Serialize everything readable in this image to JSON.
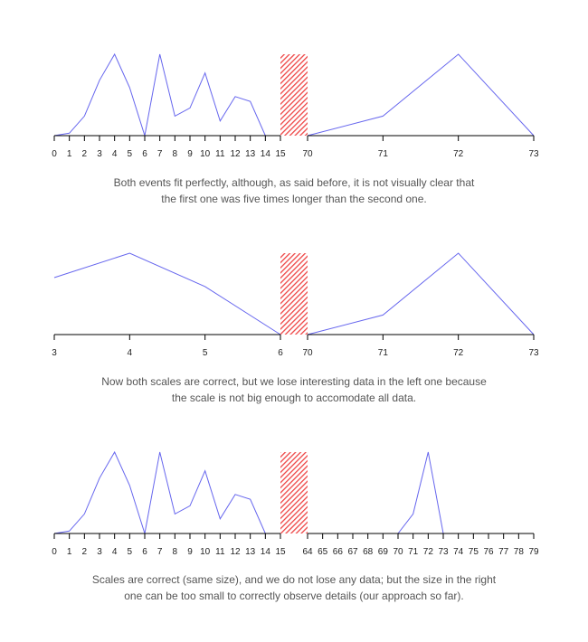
{
  "colors": {
    "line": "#6666ee",
    "hatch": "#ee4444",
    "axis": "#000000"
  },
  "captions": [
    [
      "Both events fit perfectly, although, as said before, it is not visually clear that",
      "the first one was five times longer than the second one."
    ],
    [
      "Now both scales are correct, but we lose interesting data in the left one because",
      "the scale is not big enough to accomodate all data."
    ],
    [
      "Scales are correct (same size), and we do not lose any data; but the size in the right",
      "one can be too small to correctly observe details (our approach so far)."
    ]
  ],
  "chart_data": [
    {
      "type": "line",
      "left": {
        "x": [
          0,
          1,
          2,
          3,
          4,
          5,
          6,
          7,
          8,
          9,
          10,
          11,
          12,
          13,
          14,
          15
        ],
        "y": [
          0,
          0.03,
          0.24,
          0.68,
          1.0,
          0.59,
          0,
          1.0,
          0.24,
          0.34,
          0.77,
          0.18,
          0.48,
          0.42,
          0,
          0
        ],
        "ticks": [
          "0",
          "1",
          "2",
          "3",
          "4",
          "5",
          "6",
          "7",
          "8",
          "9",
          "10",
          "11",
          "12",
          "13",
          "14",
          "15"
        ]
      },
      "right": {
        "x": [
          70,
          71,
          72,
          73
        ],
        "y": [
          0,
          0.24,
          1.0,
          0
        ],
        "ticks": [
          "70",
          "71",
          "72",
          "73"
        ]
      },
      "ylim": [
        0,
        1
      ],
      "grid": false
    },
    {
      "type": "line",
      "left": {
        "x": [
          3,
          4,
          5,
          6
        ],
        "y": [
          0.7,
          1.0,
          0.59,
          0
        ],
        "ticks": [
          "3",
          "4",
          "5",
          "6"
        ]
      },
      "right": {
        "x": [
          70,
          71,
          72,
          73
        ],
        "y": [
          0,
          0.24,
          1.0,
          0
        ],
        "ticks": [
          "70",
          "71",
          "72",
          "73"
        ]
      },
      "ylim": [
        0,
        1
      ],
      "grid": false
    },
    {
      "type": "line",
      "left": {
        "x": [
          0,
          1,
          2,
          3,
          4,
          5,
          6,
          7,
          8,
          9,
          10,
          11,
          12,
          13,
          14,
          15
        ],
        "y": [
          0,
          0.03,
          0.24,
          0.68,
          1.0,
          0.59,
          0,
          1.0,
          0.24,
          0.34,
          0.77,
          0.18,
          0.48,
          0.42,
          0,
          0
        ],
        "ticks": [
          "0",
          "1",
          "2",
          "3",
          "4",
          "5",
          "6",
          "7",
          "8",
          "9",
          "10",
          "11",
          "12",
          "13",
          "14",
          "15"
        ]
      },
      "right": {
        "x": [
          64,
          65,
          66,
          67,
          68,
          69,
          70,
          71,
          72,
          73,
          74,
          75,
          76,
          77,
          78,
          79
        ],
        "y": [
          0,
          0,
          0,
          0,
          0,
          0,
          0,
          0.24,
          1.0,
          0,
          0,
          0,
          0,
          0,
          0,
          0
        ],
        "ticks": [
          "64",
          "65",
          "66",
          "67",
          "68",
          "69",
          "70",
          "71",
          "72",
          "73",
          "74",
          "75",
          "76",
          "77",
          "78",
          "79"
        ]
      },
      "ylim": [
        0,
        1
      ],
      "grid": false
    }
  ]
}
